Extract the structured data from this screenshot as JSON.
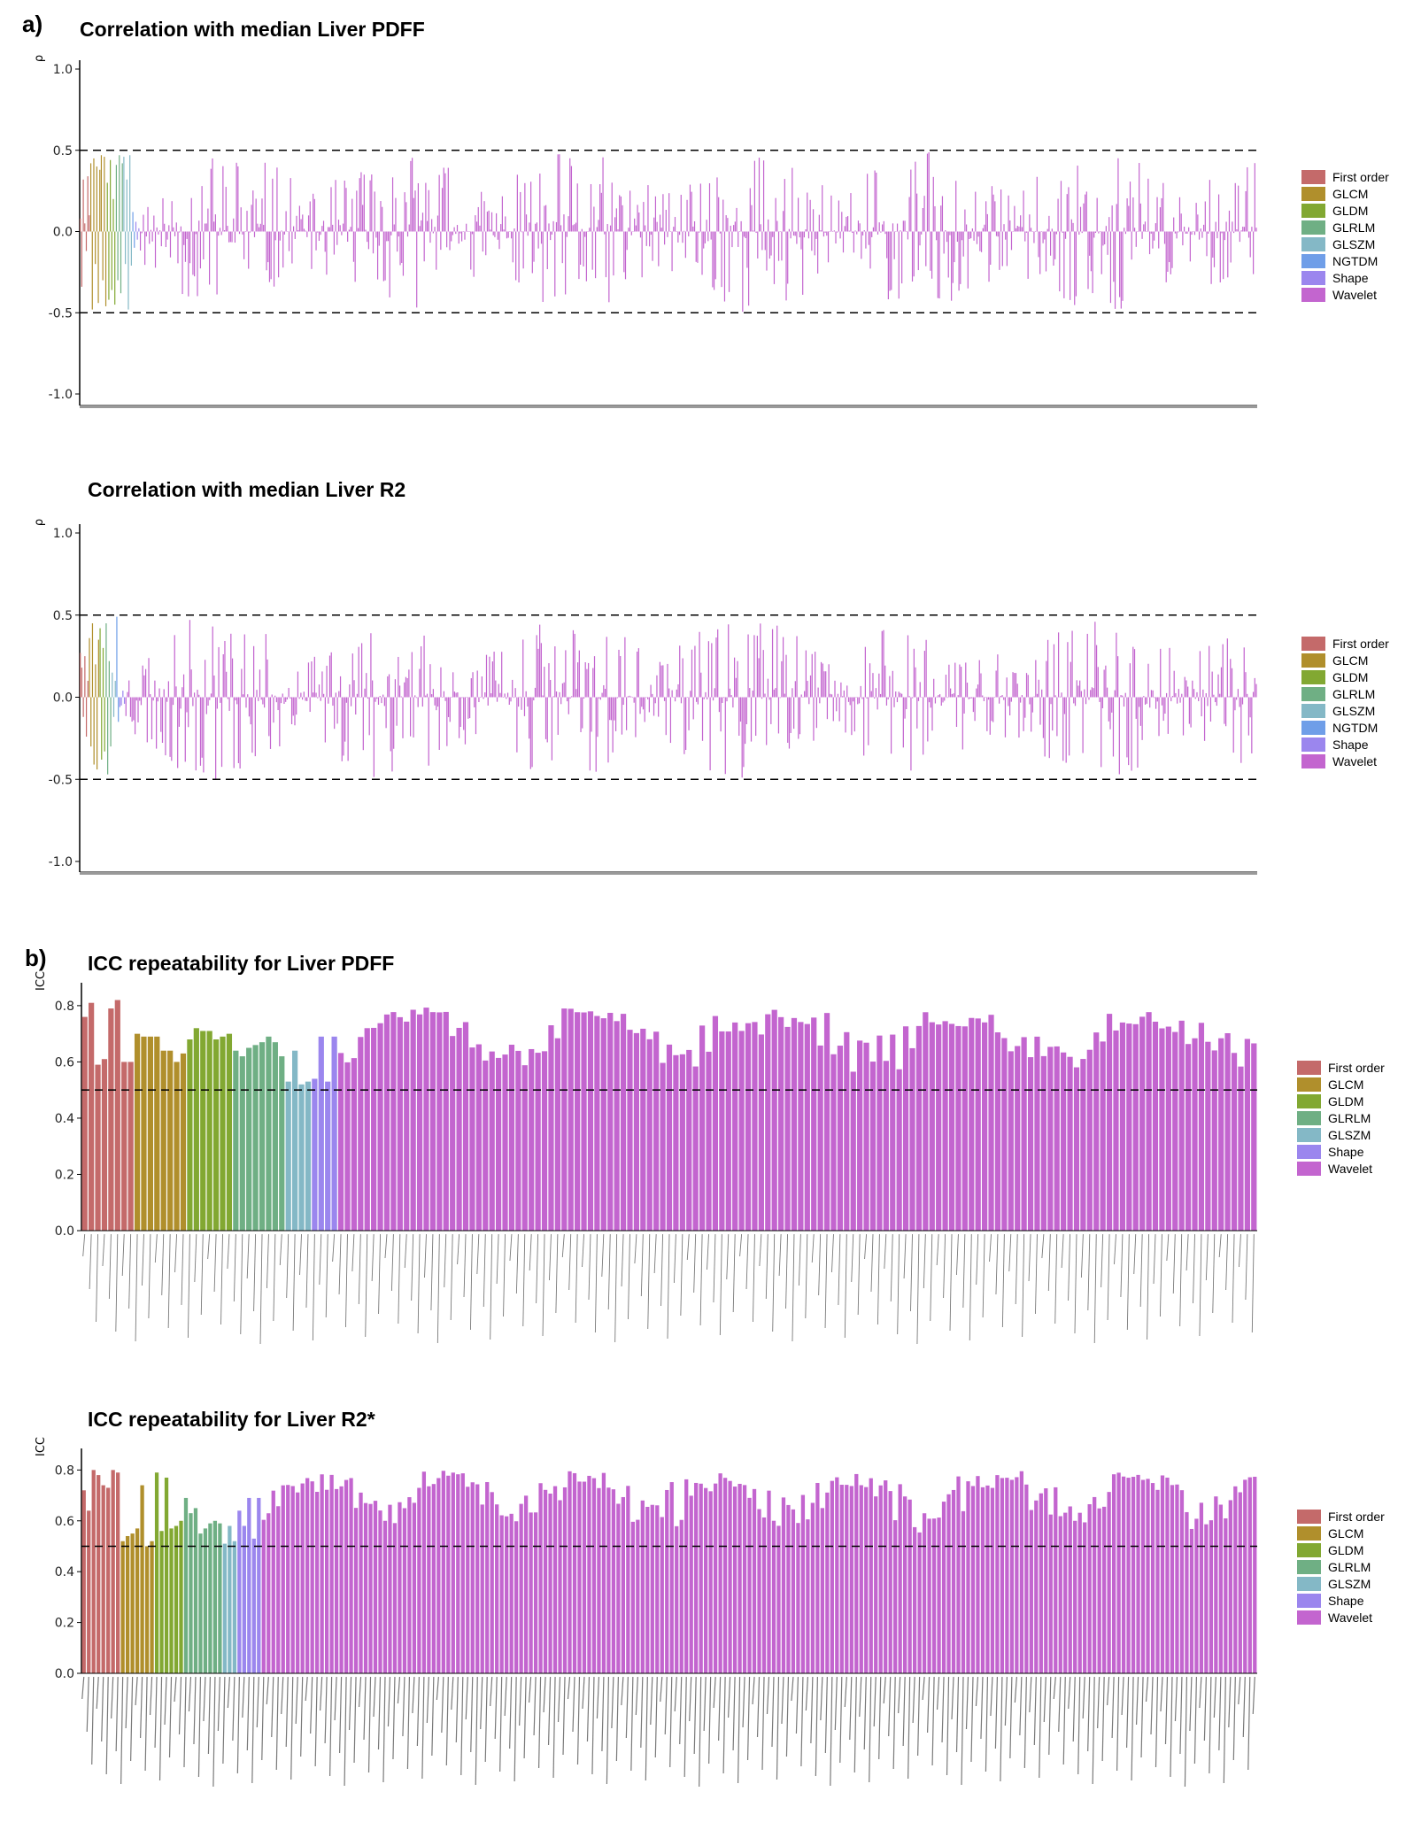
{
  "panels": {
    "a": "a)",
    "b": "b)"
  },
  "colors": {
    "First order": "#c46a6a",
    "GLCM": "#b08f2c",
    "GLDM": "#82a832",
    "GLRLM": "#6faf84",
    "GLSZM": "#84b8c6",
    "NGTDM": "#6f9ee8",
    "Shape": "#9b86ee",
    "Wavelet": "#c365cf"
  },
  "chart_data": [
    {
      "type": "bar",
      "title": "Correlation with median Liver PDFF",
      "ylabel": "ρ",
      "ylim": [
        -1.0,
        1.0
      ],
      "yticks": [
        "1.0",
        "0.5",
        "0.0",
        "-0.5",
        "-1.0"
      ],
      "reference_lines": [
        0.5,
        -0.5
      ],
      "legend": [
        "First order",
        "GLCM",
        "GLDM",
        "GLRLM",
        "GLSZM",
        "NGTDM",
        "Shape",
        "Wavelet"
      ],
      "groups": [
        {
          "name": "First order",
          "values": [
            0.08,
            -0.34,
            0.32,
            0.05,
            -0.12,
            0.34,
            0.1
          ]
        },
        {
          "name": "GLCM",
          "values": [
            0.42,
            -0.48,
            0.45,
            -0.2,
            0.4,
            -0.44,
            0.38,
            0.47,
            -0.3,
            0.46,
            -0.46
          ]
        },
        {
          "name": "GLDM",
          "values": [
            0.3,
            -0.42,
            0.44,
            -0.36,
            0.2,
            -0.45
          ]
        },
        {
          "name": "GLRLM",
          "values": [
            0.41,
            -0.3,
            0.47,
            -0.38,
            0.42
          ]
        },
        {
          "name": "GLSZM",
          "values": [
            0.46,
            -0.2,
            0.32,
            -0.48,
            0.47,
            -0.21
          ]
        },
        {
          "name": "NGTDM",
          "values": [
            0.12,
            -0.1
          ]
        },
        {
          "name": "Shape",
          "values": [
            0.06,
            -0.05,
            0.02
          ]
        },
        {
          "name": "Wavelet",
          "count": 744,
          "range": [
            -0.5,
            0.5
          ],
          "seed": 11
        }
      ]
    },
    {
      "type": "bar",
      "title": "Correlation with median Liver R2",
      "ylabel": "ρ",
      "ylim": [
        -1.0,
        1.0
      ],
      "yticks": [
        "1.0",
        "0.5",
        "0.0",
        "-0.5",
        "-1.0"
      ],
      "reference_lines": [
        0.5,
        -0.5
      ],
      "legend": [
        "First order",
        "GLCM",
        "GLDM",
        "GLRLM",
        "GLSZM",
        "NGTDM",
        "Shape",
        "Wavelet"
      ],
      "groups": [
        {
          "name": "First order",
          "values": [
            0.27,
            0.18,
            -0.12,
            0.25,
            -0.24,
            0.1
          ]
        },
        {
          "name": "GLCM",
          "values": [
            0.36,
            -0.3,
            0.45,
            -0.41,
            0.2,
            -0.44,
            0.35
          ]
        },
        {
          "name": "GLDM",
          "values": [
            0.42,
            -0.38,
            0.3,
            -0.33
          ]
        },
        {
          "name": "GLRLM",
          "values": [
            0.45,
            -0.47,
            0.22,
            -0.3
          ]
        },
        {
          "name": "GLSZM",
          "values": [
            0.15,
            -0.12,
            0.1
          ]
        },
        {
          "name": "NGTDM",
          "values": [
            0.49,
            -0.15
          ]
        },
        {
          "name": "Shape",
          "values": [
            -0.06,
            -0.05,
            0.04,
            -0.04
          ]
        },
        {
          "name": "Wavelet",
          "count": 744,
          "range": [
            -0.5,
            0.5
          ],
          "seed": 23
        }
      ]
    },
    {
      "type": "bar",
      "title": "ICC repeatability for Liver PDFF",
      "ylabel": "ICC",
      "ylim": [
        0.0,
        0.85
      ],
      "yticks": [
        "0.8",
        "0.6",
        "0.4",
        "0.2",
        "0.0"
      ],
      "reference_lines": [
        0.5
      ],
      "legend": [
        "First order",
        "GLCM",
        "GLDM",
        "GLRLM",
        "GLSZM",
        "Shape",
        "Wavelet"
      ],
      "groups": [
        {
          "name": "First order",
          "values": [
            0.76,
            0.81,
            0.59,
            0.61,
            0.79,
            0.82,
            0.6,
            0.6
          ]
        },
        {
          "name": "GLCM",
          "values": [
            0.7,
            0.69,
            0.69,
            0.69,
            0.64,
            0.64,
            0.6,
            0.63
          ]
        },
        {
          "name": "GLDM",
          "values": [
            0.68,
            0.72,
            0.71,
            0.71,
            0.68,
            0.69,
            0.7
          ]
        },
        {
          "name": "GLRLM",
          "values": [
            0.64,
            0.62,
            0.65,
            0.66,
            0.67,
            0.69,
            0.67,
            0.62
          ]
        },
        {
          "name": "GLSZM",
          "values": [
            0.53,
            0.64,
            0.52,
            0.53
          ]
        },
        {
          "name": "Shape",
          "values": [
            0.54,
            0.69,
            0.53,
            0.69
          ]
        },
        {
          "name": "Wavelet",
          "count": 140,
          "range": [
            0.5,
            0.81
          ],
          "seed": 37
        }
      ]
    },
    {
      "type": "bar",
      "title": "ICC repeatability for Liver R2*",
      "ylabel": "ICC",
      "ylim": [
        0.0,
        0.85
      ],
      "yticks": [
        "0.8",
        "0.6",
        "0.4",
        "0.2",
        "0.0"
      ],
      "reference_lines": [
        0.5
      ],
      "legend": [
        "First order",
        "GLCM",
        "GLDM",
        "GLRLM",
        "GLSZM",
        "Shape",
        "Wavelet"
      ],
      "groups": [
        {
          "name": "First order",
          "values": [
            0.72,
            0.64,
            0.8,
            0.78,
            0.74,
            0.73,
            0.8,
            0.79
          ]
        },
        {
          "name": "GLCM",
          "values": [
            0.52,
            0.54,
            0.55,
            0.57,
            0.74,
            0.5,
            0.52
          ]
        },
        {
          "name": "GLDM",
          "values": [
            0.79,
            0.56,
            0.77,
            0.57,
            0.58,
            0.6
          ]
        },
        {
          "name": "GLRLM",
          "values": [
            0.69,
            0.63,
            0.65,
            0.55,
            0.57,
            0.59,
            0.6,
            0.59
          ]
        },
        {
          "name": "GLSZM",
          "values": [
            0.51,
            0.58,
            0.52
          ]
        },
        {
          "name": "Shape",
          "values": [
            0.64,
            0.58,
            0.69,
            0.53,
            0.69
          ]
        },
        {
          "name": "Wavelet",
          "count": 205,
          "range": [
            0.5,
            0.82
          ],
          "seed": 53
        }
      ]
    }
  ]
}
